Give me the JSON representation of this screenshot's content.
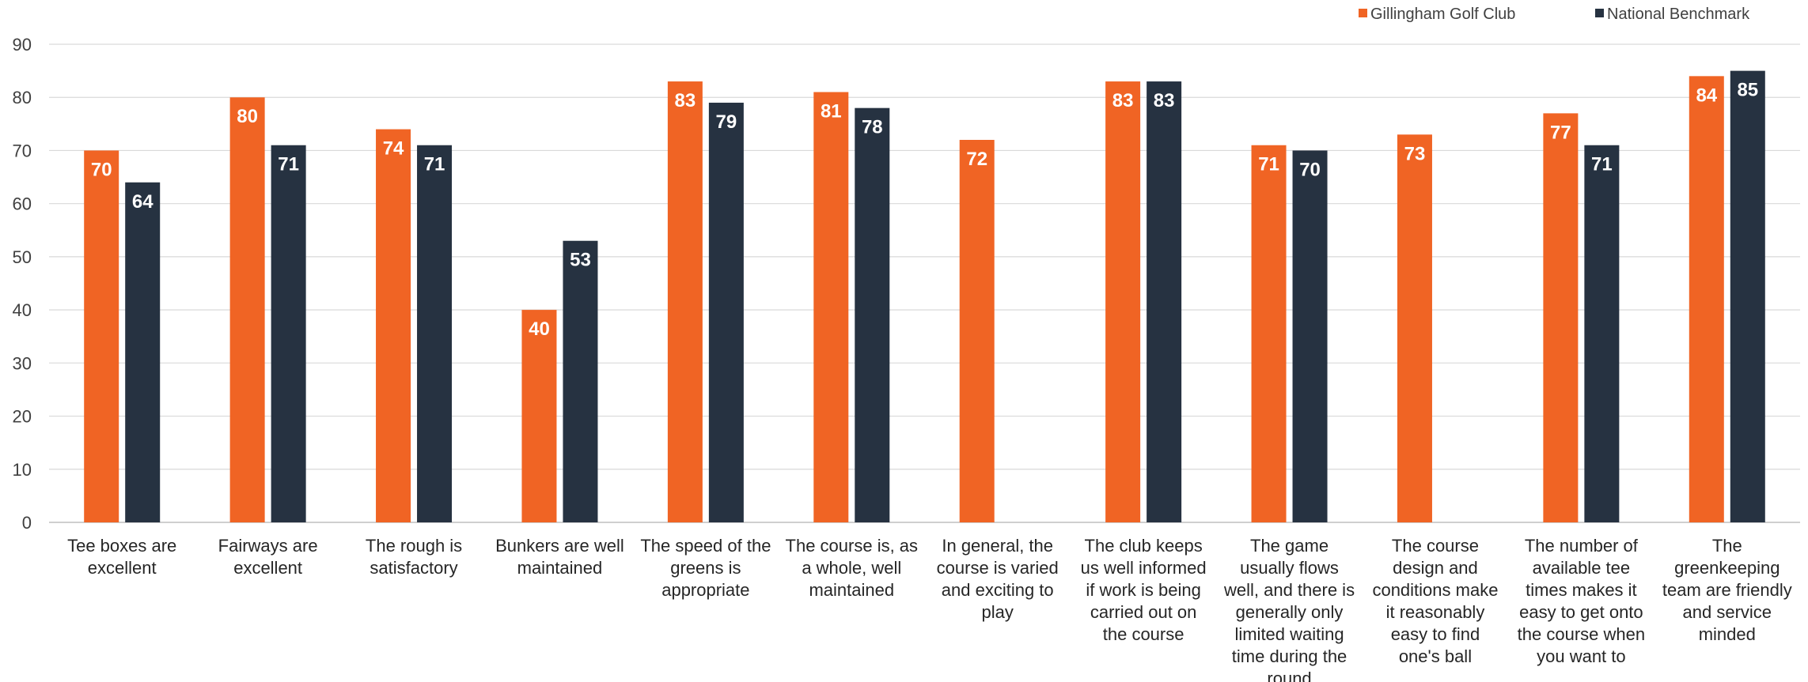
{
  "chart_data": {
    "type": "bar",
    "categories": [
      [
        "Tee boxes are",
        "excellent"
      ],
      [
        "Fairways are",
        "excellent"
      ],
      [
        "The rough is",
        "satisfactory"
      ],
      [
        "Bunkers are well",
        "maintained"
      ],
      [
        "The speed of the",
        "greens is",
        "appropriate"
      ],
      [
        "The course is, as",
        "a whole, well",
        "maintained"
      ],
      [
        "In general, the",
        "course is varied",
        "and exciting to",
        "play"
      ],
      [
        "The club keeps",
        "us well informed",
        "if work is being",
        "carried out on",
        "the course"
      ],
      [
        "The game",
        "usually flows",
        "well, and there is",
        "generally only",
        "limited waiting",
        "time during the",
        "round"
      ],
      [
        "The course",
        "design and",
        "conditions make",
        "it reasonably",
        "easy to find",
        "one's ball"
      ],
      [
        "The number of",
        "available tee",
        "times makes it",
        "easy to get onto",
        "the course when",
        "you want to"
      ],
      [
        "The",
        "greenkeeping",
        "team are friendly",
        "and service",
        "minded"
      ]
    ],
    "series": [
      {
        "name": "Gillingham Golf Club",
        "color": "#F06424",
        "values": [
          70,
          80,
          74,
          40,
          83,
          81,
          72,
          83,
          71,
          73,
          77,
          84
        ]
      },
      {
        "name": "National Benchmark",
        "color": "#263241",
        "values": [
          64,
          71,
          71,
          53,
          79,
          78,
          null,
          83,
          70,
          null,
          71,
          85
        ]
      }
    ],
    "yticks": [
      0,
      10,
      20,
      30,
      40,
      50,
      60,
      70,
      80,
      90
    ],
    "ylim": [
      0,
      90
    ],
    "grid": true,
    "legend_position": "top-right",
    "data_labels": true
  }
}
